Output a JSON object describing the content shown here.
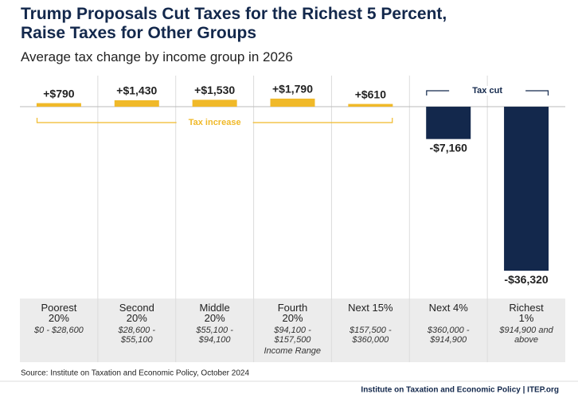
{
  "chart_data": {
    "type": "bar",
    "title": "Trump Proposals Cut Taxes for the Richest 5 Percent, Raise Taxes for Other Groups",
    "subtitle": "Average tax change by income group in 2026",
    "categories": [
      "Poorest 20%",
      "Second 20%",
      "Middle 20%",
      "Fourth 20%",
      "Next 15%",
      "Next 4%",
      "Richest 1%"
    ],
    "income_ranges": [
      "$0 - $28,600",
      "$28,600 - $55,100",
      "$55,100 - $94,100",
      "$94,100 - $157,500",
      "$157,500 - $360,000",
      "$360,000 - $914,900",
      "$914,900 and above"
    ],
    "x_label": "Income Range",
    "values": [
      790,
      1430,
      1530,
      1790,
      610,
      -7160,
      -36320
    ],
    "value_labels": [
      "+$790",
      "+$1,430",
      "+$1,530",
      "+$1,790",
      "+$610",
      "-$7,160",
      "-$36,320"
    ],
    "colors": {
      "increase": "#f0b929",
      "cut": "#13284c"
    },
    "annotations": [
      "Tax increase",
      "Tax cut"
    ],
    "ylim": [
      -40000,
      6000
    ],
    "source": "Source: Institute on Taxation and Economic Policy, October 2024",
    "footer": "Institute on Taxation and Economic Policy | ITEP.org"
  }
}
